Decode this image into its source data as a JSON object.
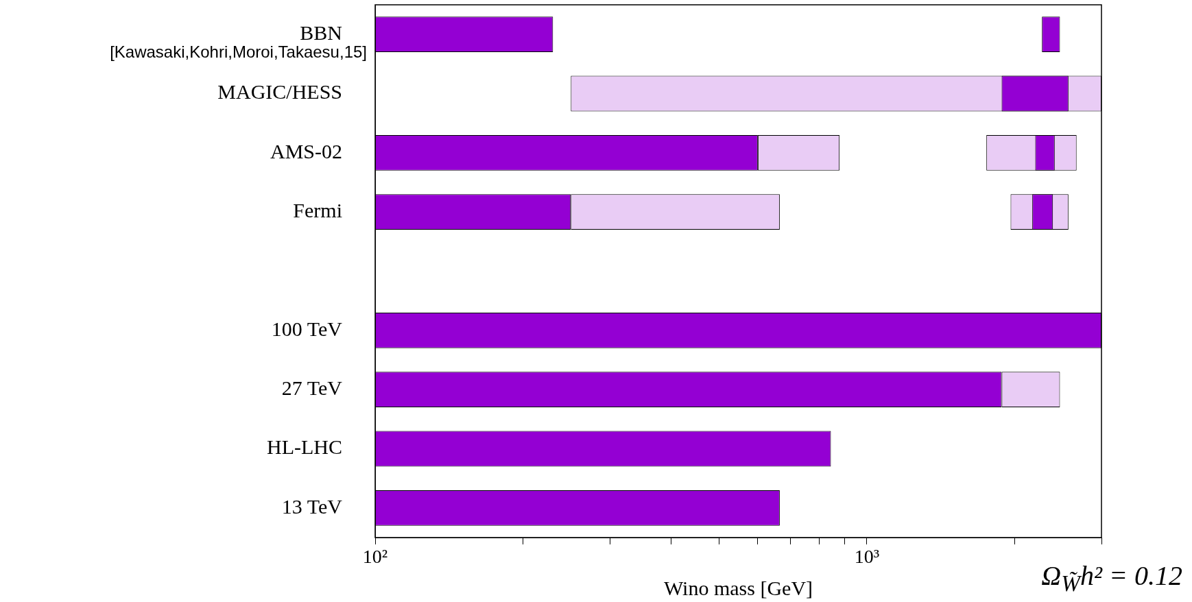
{
  "chart_data": {
    "type": "bar",
    "orientation": "horizontal",
    "log": "x",
    "xlabel": "Wino mass [GeV]",
    "categories": [
      "BBN",
      "MAGIC/HESS",
      "AMS-02",
      "Fermi",
      null,
      "100 TeV",
      "27 TeV",
      "HL-LHC",
      "13 TeV"
    ],
    "series": [
      {
        "color": "#e9ccf5",
        "base": [
          null,
          250,
          600,
          250,
          null,
          null,
          1880,
          null,
          null
        ],
        "values": [
          null,
          2750,
          280,
          415,
          null,
          null,
          590,
          null,
          null
        ]
      },
      {
        "color": "#e9ccf5",
        "base": [
          null,
          null,
          1750,
          1960,
          null,
          null,
          null,
          null,
          null
        ],
        "values": [
          null,
          null,
          920,
          610,
          null,
          null,
          null,
          null,
          null
        ]
      },
      {
        "color": "#9400d3",
        "base": [
          100,
          1880,
          100,
          100,
          null,
          100,
          100,
          100,
          100
        ],
        "values": [
          130,
          690,
          500,
          150,
          null,
          2900,
          1780,
          745,
          565
        ]
      },
      {
        "color": "#9400d3",
        "base": [
          2270,
          null,
          2200,
          2170,
          null,
          null,
          null,
          null,
          null
        ],
        "values": [
          200,
          null,
          210,
          220,
          null,
          null,
          null,
          null,
          null
        ]
      }
    ],
    "xlim": [
      100,
      3000
    ],
    "xticks": [
      {
        "value": 100,
        "label": "10²"
      },
      {
        "value": 200,
        "label": null
      },
      {
        "value": 300,
        "label": null
      },
      {
        "value": 400,
        "label": null
      },
      {
        "value": 500,
        "label": null
      },
      {
        "value": 600,
        "label": null
      },
      {
        "value": 700,
        "label": null
      },
      {
        "value": 800,
        "label": null
      },
      {
        "value": 900,
        "label": null
      },
      {
        "value": 1000,
        "label": "10³"
      },
      {
        "value": 2000,
        "label": null
      },
      {
        "value": 3000,
        "label": null
      }
    ],
    "grid": false,
    "legend": false,
    "annotations": [
      "[Kawasaki,Kohri,Moroi,Takaesu,15]",
      "Ω$_{W̃}$h² = 0.12"
    ]
  }
}
